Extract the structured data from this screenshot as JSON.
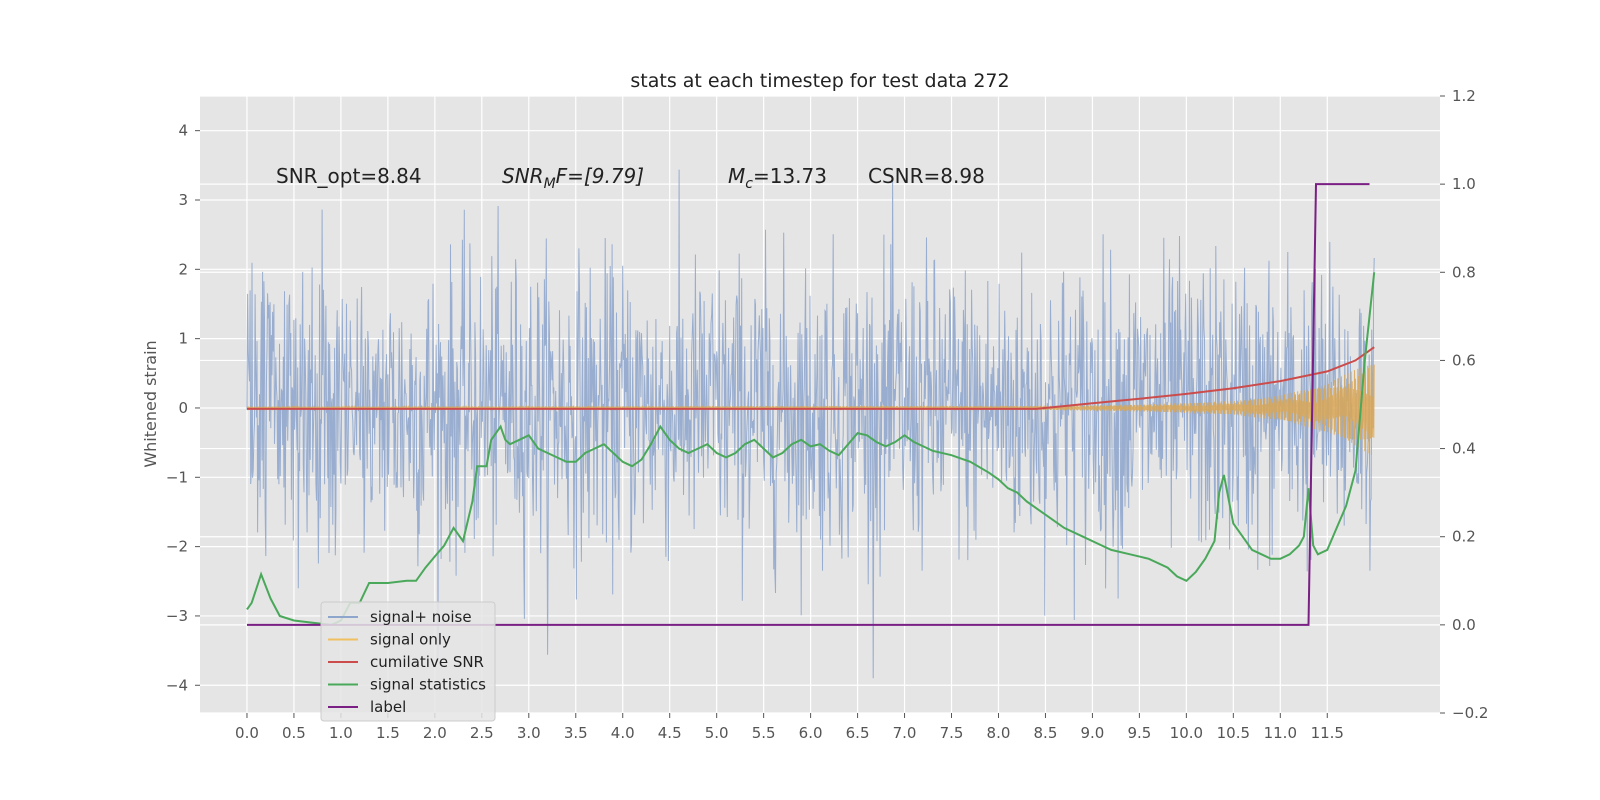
{
  "chart_data": {
    "type": "line",
    "title": "stats at each timestep for test data 272",
    "ylabel": "Whitened strain",
    "y2label": "",
    "xlabel": "",
    "xlim": [
      -0.5,
      12.7
    ],
    "ylim": [
      -4.4,
      4.5
    ],
    "y2lim": [
      -0.2,
      1.2
    ],
    "grid": true,
    "legend_position": "lower-left",
    "x_ticks": [
      "0.0",
      "0.5",
      "1.0",
      "1.5",
      "2.0",
      "2.5",
      "3.0",
      "3.5",
      "4.0",
      "4.5",
      "5.0",
      "5.5",
      "6.0",
      "6.5",
      "7.0",
      "7.5",
      "8.0",
      "8.5",
      "9.0",
      "9.5",
      "10.0",
      "10.5",
      "11.0",
      "11.5"
    ],
    "y_ticks": [
      "4",
      "3",
      "2",
      "1",
      "0",
      "−1",
      "−2",
      "−3",
      "−4"
    ],
    "y2_ticks": [
      "1.2",
      "1.0",
      "0.8",
      "0.6",
      "0.4",
      "0.2",
      "0.0",
      "−0.2"
    ],
    "annotations": {
      "snr_opt": "SNR_opt=8.84",
      "snr_mf_prefix": "SNR",
      "snr_mf_sub": "M",
      "snr_mf_suffix": "F=[9.79]",
      "mc_prefix": "M",
      "mc_sub": "c",
      "mc_suffix": "=13.73",
      "csnr": "CSNR=8.98"
    },
    "series": [
      {
        "name": "signal+ noise",
        "color": "#8fa6cc",
        "axis": "left",
        "note": "dense noise, amplitude ~ ±2.5 with spikes to ±4",
        "x_range": [
          0.0,
          12.0
        ]
      },
      {
        "name": "signal only",
        "color": "#d9a653",
        "axis": "left",
        "note": "chirp envelope",
        "envelope": {
          "x": [
            0.0,
            8.5,
            9.5,
            10.5,
            11.0,
            11.5,
            12.0
          ],
          "y": [
            0.02,
            0.03,
            0.05,
            0.1,
            0.18,
            0.35,
            0.7
          ]
        }
      },
      {
        "name": "cumilative SNR",
        "color": "#cc4c4c",
        "axis": "right",
        "x": [
          0.0,
          8.4,
          9.0,
          9.5,
          10.0,
          10.5,
          11.0,
          11.5,
          11.8,
          12.0
        ],
        "y": [
          0.49,
          0.49,
          0.503,
          0.513,
          0.524,
          0.537,
          0.553,
          0.575,
          0.6,
          0.63
        ]
      },
      {
        "name": "signal statistics",
        "color": "#4aa85a",
        "axis": "right",
        "x": [
          0.0,
          0.05,
          0.15,
          0.25,
          0.35,
          0.5,
          0.7,
          0.9,
          1.0,
          1.1,
          1.2,
          1.3,
          1.5,
          1.7,
          1.8,
          1.9,
          2.0,
          2.1,
          2.2,
          2.3,
          2.4,
          2.45,
          2.55,
          2.6,
          2.7,
          2.75,
          2.8,
          2.9,
          3.0,
          3.1,
          3.2,
          3.3,
          3.4,
          3.5,
          3.6,
          3.7,
          3.8,
          3.9,
          4.0,
          4.1,
          4.2,
          4.3,
          4.4,
          4.5,
          4.6,
          4.7,
          4.8,
          4.9,
          5.0,
          5.1,
          5.2,
          5.3,
          5.4,
          5.5,
          5.6,
          5.7,
          5.8,
          5.9,
          6.0,
          6.1,
          6.2,
          6.3,
          6.4,
          6.5,
          6.6,
          6.7,
          6.8,
          6.9,
          7.0,
          7.1,
          7.2,
          7.3,
          7.5,
          7.7,
          7.9,
          8.0,
          8.1,
          8.2,
          8.3,
          8.5,
          8.7,
          8.9,
          9.0,
          9.2,
          9.4,
          9.6,
          9.8,
          9.9,
          10.0,
          10.1,
          10.2,
          10.3,
          10.35,
          10.4,
          10.5,
          10.6,
          10.7,
          10.8,
          10.9,
          11.0,
          11.1,
          11.2,
          11.25,
          11.3,
          11.35,
          11.4,
          11.5,
          11.6,
          11.7,
          11.8,
          11.9,
          12.0
        ],
        "y": [
          0.035,
          0.05,
          0.115,
          0.06,
          0.02,
          0.01,
          0.005,
          0.0,
          0.01,
          0.05,
          0.05,
          0.095,
          0.095,
          0.1,
          0.1,
          0.13,
          0.155,
          0.18,
          0.22,
          0.19,
          0.28,
          0.36,
          0.36,
          0.42,
          0.45,
          0.42,
          0.41,
          0.42,
          0.43,
          0.4,
          0.39,
          0.38,
          0.37,
          0.37,
          0.39,
          0.4,
          0.41,
          0.39,
          0.37,
          0.36,
          0.375,
          0.41,
          0.45,
          0.42,
          0.4,
          0.39,
          0.4,
          0.41,
          0.39,
          0.38,
          0.39,
          0.41,
          0.42,
          0.4,
          0.38,
          0.39,
          0.41,
          0.42,
          0.405,
          0.41,
          0.395,
          0.385,
          0.41,
          0.435,
          0.43,
          0.415,
          0.405,
          0.415,
          0.43,
          0.415,
          0.405,
          0.395,
          0.385,
          0.37,
          0.345,
          0.33,
          0.31,
          0.3,
          0.28,
          0.25,
          0.22,
          0.2,
          0.19,
          0.17,
          0.16,
          0.15,
          0.13,
          0.11,
          0.1,
          0.12,
          0.15,
          0.19,
          0.3,
          0.34,
          0.23,
          0.2,
          0.17,
          0.16,
          0.15,
          0.15,
          0.16,
          0.18,
          0.2,
          0.31,
          0.18,
          0.16,
          0.17,
          0.22,
          0.27,
          0.35,
          0.6,
          0.8
        ]
      },
      {
        "name": "label",
        "color": "#7a1f84",
        "axis": "right",
        "x": [
          0.0,
          11.3,
          11.38,
          11.95
        ],
        "y": [
          0.0,
          0.0,
          1.0,
          1.0
        ]
      }
    ],
    "legend_entries": [
      {
        "name": "signal+ noise",
        "color": "#8fa6cc"
      },
      {
        "name": "signal only",
        "color": "#f0c060"
      },
      {
        "name": "cumilative SNR",
        "color": "#cc4c4c"
      },
      {
        "name": "signal statistics",
        "color": "#4aa85a"
      },
      {
        "name": "label",
        "color": "#7a1f84"
      }
    ]
  }
}
